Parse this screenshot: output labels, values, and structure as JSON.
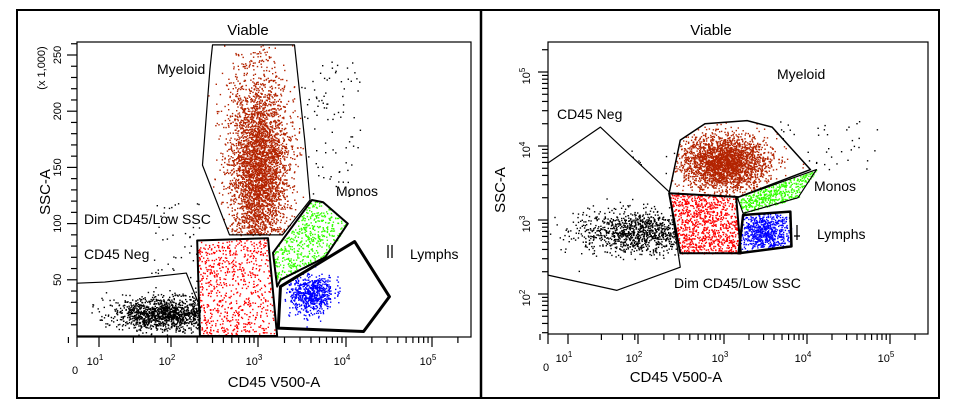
{
  "chart_data": [
    {
      "type": "scatter",
      "title": "Viable",
      "xlabel": "CD45 V500-A",
      "ylabel": "SSC-A",
      "y_multiplier_label": "(x 1,000)",
      "x_scale": "biexponential",
      "y_scale": "linear",
      "x_ticks": [
        {
          "v": 0,
          "label": "0"
        },
        {
          "v": 10,
          "label": "10",
          "exp": "1"
        },
        {
          "v": 100,
          "label": "10",
          "exp": "2"
        },
        {
          "v": 1000,
          "label": "10",
          "exp": "3"
        },
        {
          "v": 10000,
          "label": "10",
          "exp": "4"
        },
        {
          "v": 100000,
          "label": "10",
          "exp": "5"
        }
      ],
      "y_ticks": [
        {
          "v": 50,
          "label": "50"
        },
        {
          "v": 100,
          "label": "100"
        },
        {
          "v": 150,
          "label": "150"
        },
        {
          "v": 200,
          "label": "200"
        },
        {
          "v": 250,
          "label": "250"
        }
      ],
      "ylim": [
        0,
        262
      ],
      "gates": [
        {
          "name": "Myeloid",
          "label": "Myeloid",
          "color": "#b32400",
          "polygon": [
            [
              300,
              259
            ],
            [
              2600,
              259
            ],
            [
              3400,
              174
            ],
            [
              3900,
              121
            ],
            [
              1900,
              90
            ],
            [
              470,
              90
            ],
            [
              230,
              152
            ],
            [
              280,
              237
            ]
          ]
        },
        {
          "name": "Dim CD45/Low SSC",
          "label": "Dim CD45/Low SSC",
          "color": "#ff0000",
          "polygon": [
            [
              200,
              85
            ],
            [
              1300,
              87
            ],
            [
              1650,
              0
            ],
            [
              215,
              0
            ]
          ]
        },
        {
          "name": "Monos",
          "label": "Monos",
          "color": "#33ff00",
          "polygon": [
            [
              1480,
              74
            ],
            [
              4100,
              121
            ],
            [
              5500,
              119
            ],
            [
              10500,
              100
            ],
            [
              5800,
              70
            ],
            [
              1800,
              50
            ],
            [
              1650,
              44
            ]
          ]
        },
        {
          "name": "Lymphs",
          "label": "Lymphs",
          "color": "#0000ff",
          "polygon": [
            [
              1800,
              44
            ],
            [
              12600,
              84
            ],
            [
              32000,
              35
            ],
            [
              16000,
              4
            ],
            [
              1700,
              7
            ]
          ]
        },
        {
          "name": "CD45 Neg",
          "label": "CD45 Neg",
          "color": "#000000",
          "polygon": [
            [
              0,
              47
            ],
            [
              12,
              48
            ],
            [
              115,
              55
            ],
            [
              150,
              56
            ],
            [
              215,
              26
            ],
            [
              215,
              0
            ],
            [
              0,
              0
            ]
          ]
        }
      ],
      "populations": [
        {
          "gate": "Myeloid",
          "color": "#b32400",
          "center": [
            1000,
            150
          ]
        },
        {
          "gate": "Dim CD45/Low SSC",
          "color": "#ff0000",
          "center": [
            700,
            40
          ]
        },
        {
          "gate": "Monos",
          "color": "#33ff00",
          "center": [
            3000,
            85
          ]
        },
        {
          "gate": "Lymphs",
          "color": "#0000ff",
          "center": [
            4000,
            38
          ]
        },
        {
          "gate": "CD45 Neg",
          "color": "#000000",
          "center": [
            80,
            20
          ]
        }
      ]
    },
    {
      "type": "scatter",
      "title": "Viable",
      "xlabel": "CD45 V500-A",
      "ylabel": "SSC-A",
      "x_scale": "biexponential",
      "y_scale": "log",
      "x_ticks": [
        {
          "v": 0,
          "label": "0"
        },
        {
          "v": 10,
          "label": "10",
          "exp": "1"
        },
        {
          "v": 100,
          "label": "10",
          "exp": "2"
        },
        {
          "v": 1000,
          "label": "10",
          "exp": "3"
        },
        {
          "v": 10000,
          "label": "10",
          "exp": "4"
        },
        {
          "v": 100000,
          "label": "10",
          "exp": "5"
        }
      ],
      "y_ticks": [
        {
          "v": 100,
          "label": "10",
          "exp": "2"
        },
        {
          "v": 1000,
          "label": "10",
          "exp": "3"
        },
        {
          "v": 10000,
          "label": "10",
          "exp": "4"
        },
        {
          "v": 100000,
          "label": "10",
          "exp": "5"
        }
      ],
      "gates": [
        {
          "name": "CD45 Neg",
          "label": "CD45 Neg",
          "color": "#000000",
          "polygon": [
            [
              0,
              5900
            ],
            [
              29,
              18000
            ],
            [
              230,
              2400
            ],
            [
              310,
              230
            ],
            [
              50,
              112
            ],
            [
              0,
              180
            ]
          ]
        },
        {
          "name": "Myeloid",
          "label": "Myeloid",
          "color": "#b32400",
          "polygon": [
            [
              310,
              12000
            ],
            [
              600,
              20000
            ],
            [
              1900,
              22000
            ],
            [
              3800,
              18000
            ],
            [
              11000,
              4800
            ],
            [
              1500,
              2050
            ],
            [
              230,
              2300
            ]
          ]
        },
        {
          "name": "Dim CD45/Low SSC",
          "label": "Dim CD45/Low SSC",
          "color": "#ff0000",
          "polygon": [
            [
              230,
              2300
            ],
            [
              1400,
              2050
            ],
            [
              1600,
              355
            ],
            [
              310,
              355
            ]
          ]
        },
        {
          "name": "Monos",
          "label": "Monos",
          "color": "#33ff00",
          "polygon": [
            [
              1450,
              2000
            ],
            [
              13000,
              4800
            ],
            [
              7800,
              2000
            ],
            [
              1700,
              1230
            ]
          ]
        },
        {
          "name": "Lymphs",
          "label": "Lymphs",
          "color": "#0000ff",
          "polygon": [
            [
              1700,
              1170
            ],
            [
              6300,
              1300
            ],
            [
              6500,
              440
            ],
            [
              1500,
              355
            ]
          ]
        }
      ],
      "populations": [
        {
          "gate": "Myeloid",
          "color": "#b32400",
          "center": [
            1000,
            6000
          ]
        },
        {
          "gate": "Dim CD45/Low SSC",
          "color": "#ff0000",
          "center": [
            700,
            900
          ]
        },
        {
          "gate": "Monos",
          "color": "#33ff00",
          "center": [
            4000,
            2500
          ]
        },
        {
          "gate": "Lymphs",
          "color": "#0000ff",
          "center": [
            3000,
            700
          ]
        },
        {
          "gate": "CD45 Neg",
          "color": "#000000",
          "center": [
            100,
            700
          ]
        }
      ]
    }
  ]
}
